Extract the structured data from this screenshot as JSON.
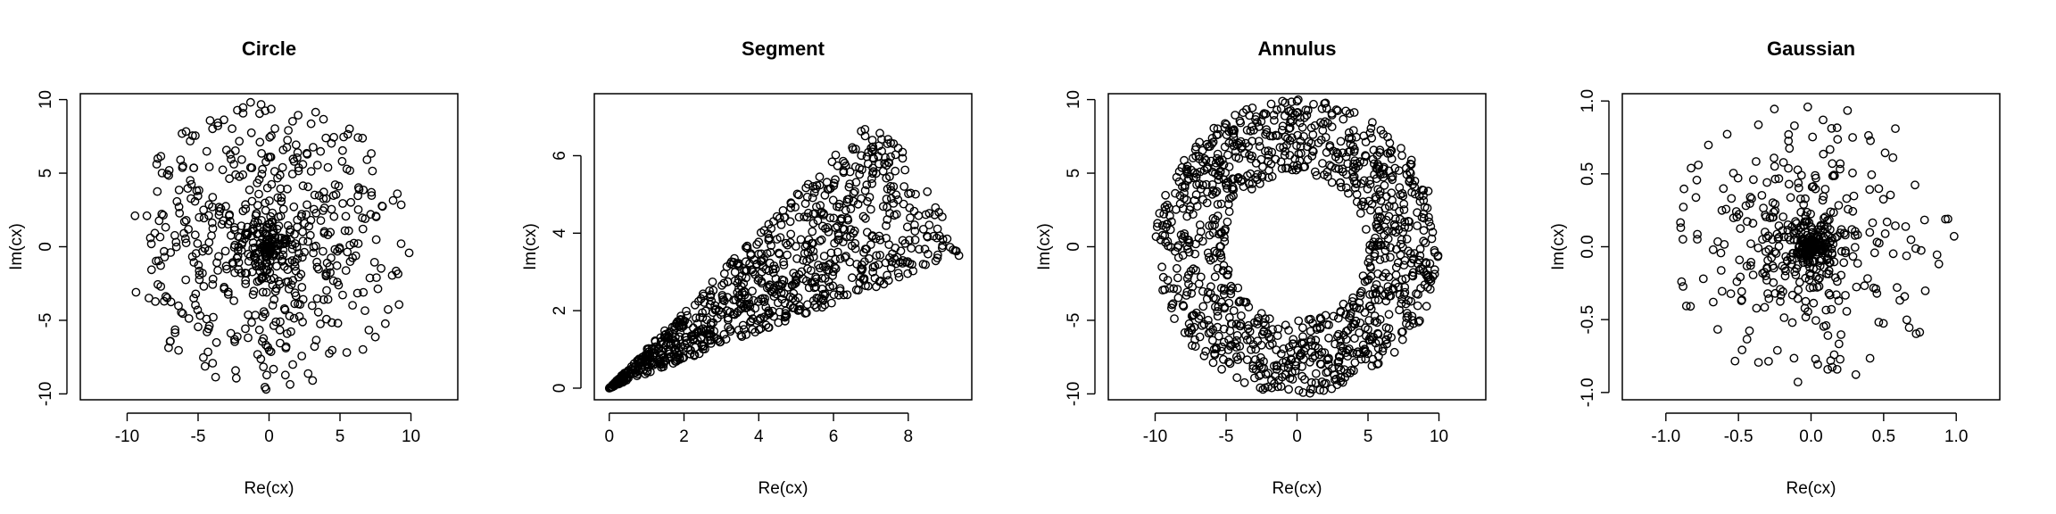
{
  "chart_data": [
    {
      "type": "scatter",
      "title": "Circle",
      "xlabel": "Re(cx)",
      "ylabel": "Im(cx)",
      "xlim": [
        -13.3,
        13.3
      ],
      "ylim": [
        -10.4,
        10.4
      ],
      "xticks": [
        -10,
        -5,
        0,
        5,
        10
      ],
      "yticks": [
        -10,
        -5,
        0,
        5,
        10
      ],
      "xtick_labels": [
        "-10",
        "-5",
        "0",
        "5",
        "10"
      ],
      "ytick_labels": [
        "-10",
        "-5",
        "0",
        "5",
        "10"
      ],
      "grid": false,
      "marker": "open-circle",
      "distribution": {
        "kind": "disk-uniform-radius",
        "radius": 10,
        "n": 650
      }
    },
    {
      "type": "scatter",
      "title": "Segment",
      "xlabel": "Re(cx)",
      "ylabel": "Im(cx)",
      "xlim": [
        -0.4,
        9.7
      ],
      "ylim": [
        -0.3,
        7.6
      ],
      "xticks": [
        0,
        2,
        4,
        6,
        8
      ],
      "yticks": [
        0,
        2,
        4,
        6
      ],
      "xtick_labels": [
        "0",
        "2",
        "4",
        "6",
        "8"
      ],
      "ytick_labels": [
        "0",
        "2",
        "4",
        "6"
      ],
      "grid": false,
      "marker": "open-circle",
      "distribution": {
        "kind": "sector",
        "radius": 10,
        "angle_from_deg": 20,
        "angle_to_deg": 45,
        "n": 900
      }
    },
    {
      "type": "scatter",
      "title": "Annulus",
      "xlabel": "Re(cx)",
      "ylabel": "Im(cx)",
      "xlim": [
        -13.3,
        13.3
      ],
      "ylim": [
        -10.4,
        10.4
      ],
      "xticks": [
        -10,
        -5,
        0,
        5,
        10
      ],
      "yticks": [
        -10,
        -5,
        0,
        5,
        10
      ],
      "xtick_labels": [
        "-10",
        "-5",
        "0",
        "5",
        "10"
      ],
      "ytick_labels": [
        "-10",
        "-5",
        "0",
        "5",
        "10"
      ],
      "grid": false,
      "marker": "open-circle",
      "distribution": {
        "kind": "annulus",
        "inner_radius": 5,
        "outer_radius": 10,
        "n": 1100
      }
    },
    {
      "type": "scatter",
      "title": "Gaussian",
      "xlabel": "Re(cx)",
      "ylabel": "Im(cx)",
      "xlim": [
        -1.3,
        1.3
      ],
      "ylim": [
        -1.05,
        1.05
      ],
      "xticks": [
        -1.0,
        -0.5,
        0.0,
        0.5,
        1.0
      ],
      "yticks": [
        -1.0,
        -0.5,
        0.0,
        0.5,
        1.0
      ],
      "xtick_labels": [
        "-1.0",
        "-0.5",
        "0.0",
        "0.5",
        "1.0"
      ],
      "ytick_labels": [
        "-1.0",
        "-0.5",
        "0.0",
        "0.5",
        "1.0"
      ],
      "grid": false,
      "marker": "open-circle",
      "distribution": {
        "kind": "gaussian-like",
        "scale": 1.0,
        "n": 600
      }
    }
  ]
}
